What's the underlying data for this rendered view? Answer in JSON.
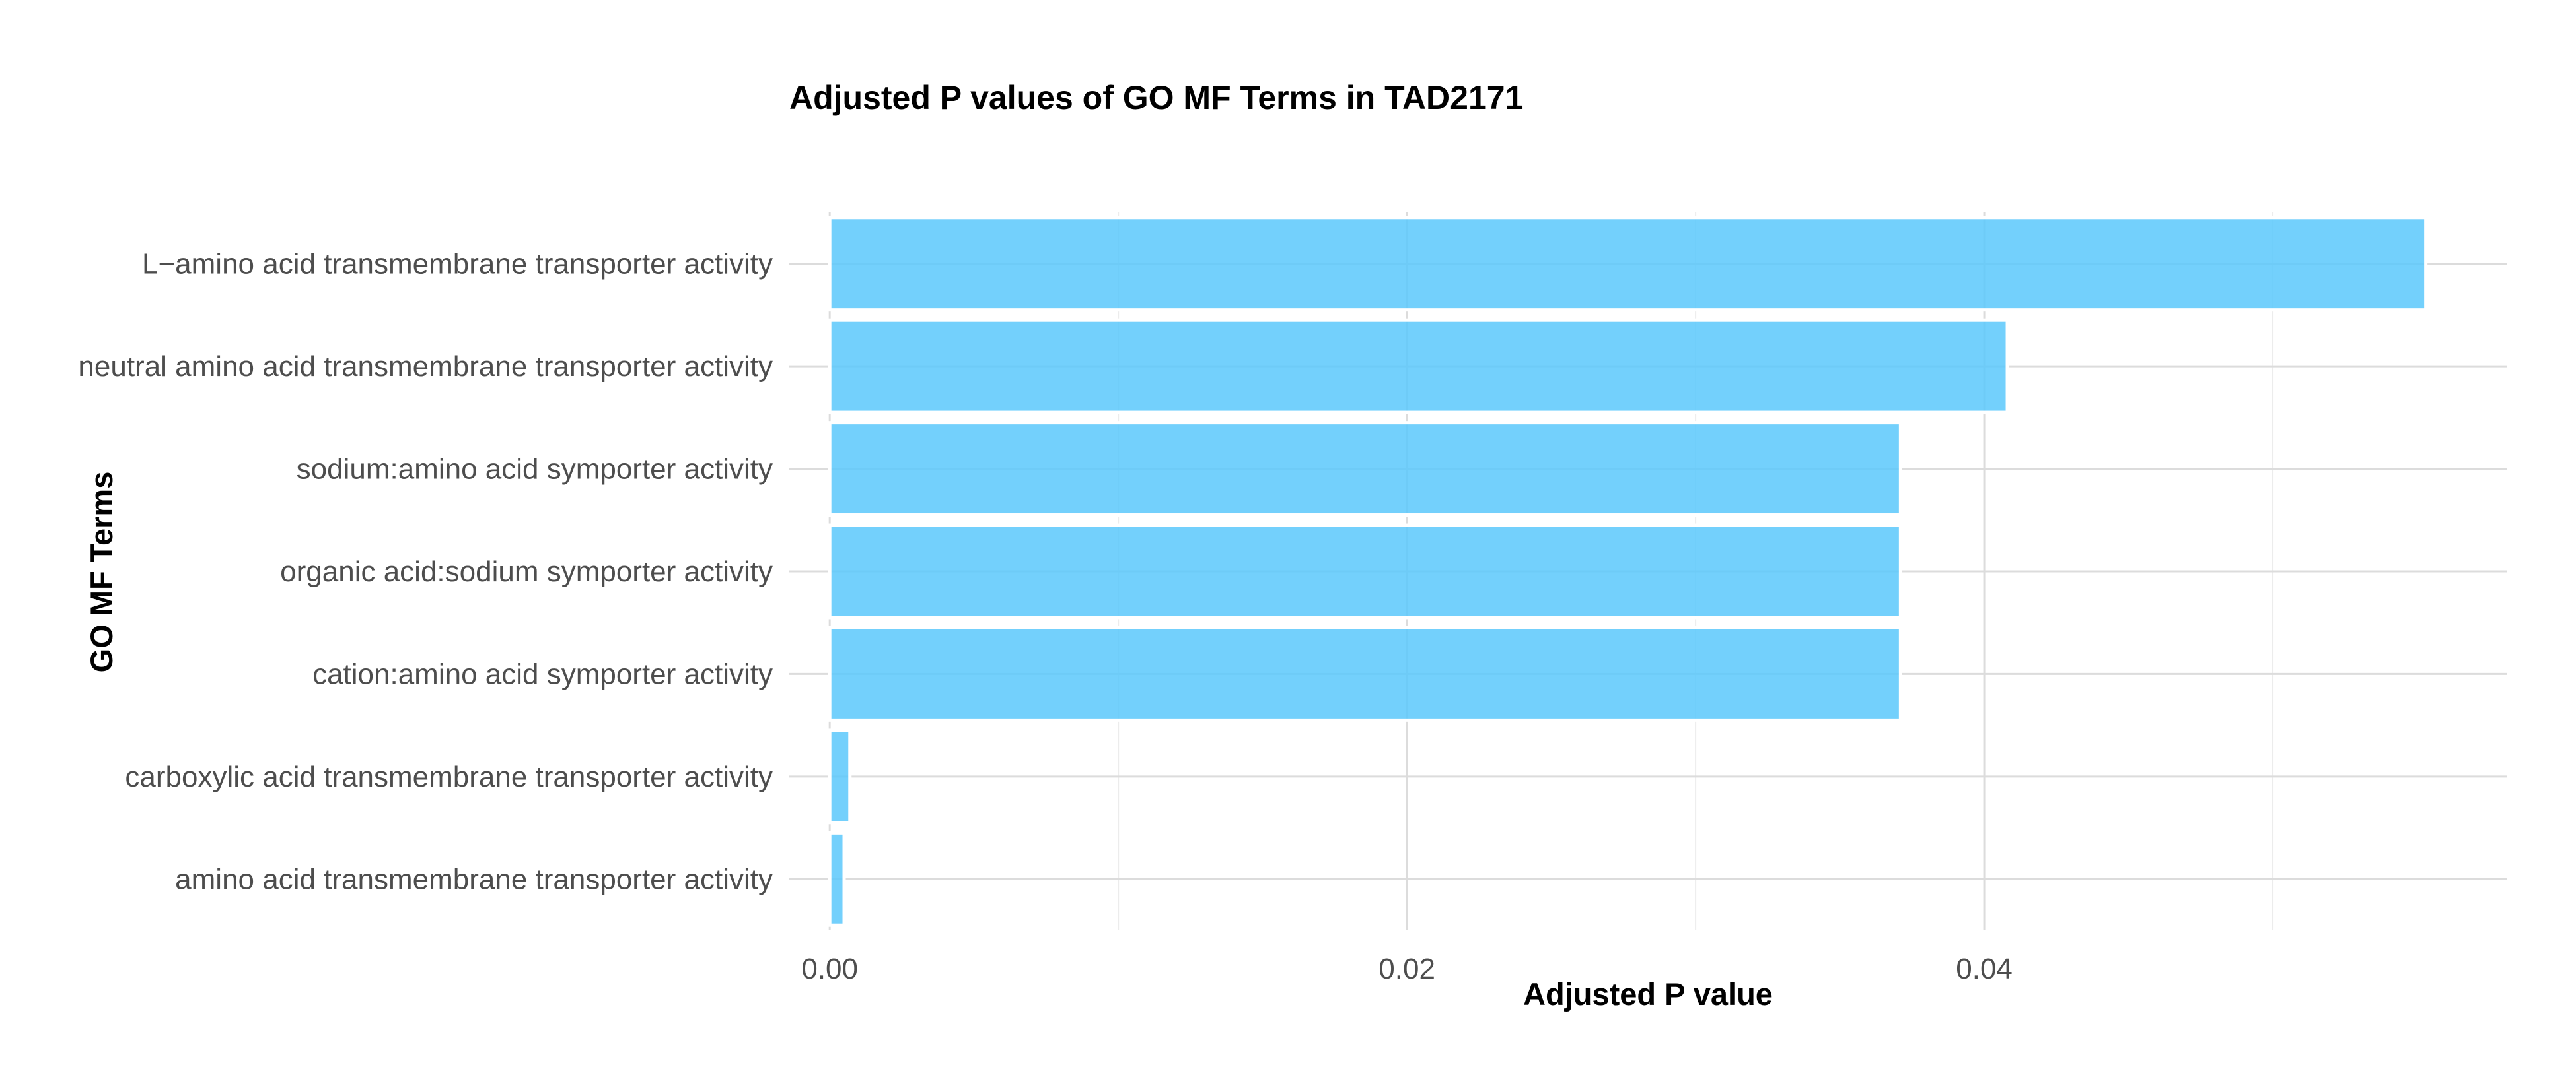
{
  "chart_data": {
    "type": "bar",
    "orientation": "horizontal",
    "title": "Adjusted P values of GO MF Terms in TAD2171",
    "xlabel": "Adjusted P value",
    "ylabel": "GO MF Terms",
    "categories": [
      "L−amino acid transmembrane transporter activity",
      "neutral amino acid transmembrane transporter activity",
      "sodium:amino acid symporter activity",
      "organic acid:sodium symporter activity",
      "cation:amino acid symporter activity",
      "carboxylic acid transmembrane transporter activity",
      "amino acid transmembrane transporter activity"
    ],
    "values": [
      0.0553,
      0.0408,
      0.0371,
      0.0371,
      0.0371,
      0.0007,
      0.0005
    ],
    "xlim": [
      -0.0014,
      0.0581
    ],
    "x_ticks": [
      0.0,
      0.02,
      0.04
    ],
    "x_tick_labels": [
      "0.00",
      "0.02",
      "0.04"
    ],
    "grid": true,
    "legend": "none",
    "bar_color": "#5bc8fb",
    "bar_outline_color": "#ffffff"
  }
}
